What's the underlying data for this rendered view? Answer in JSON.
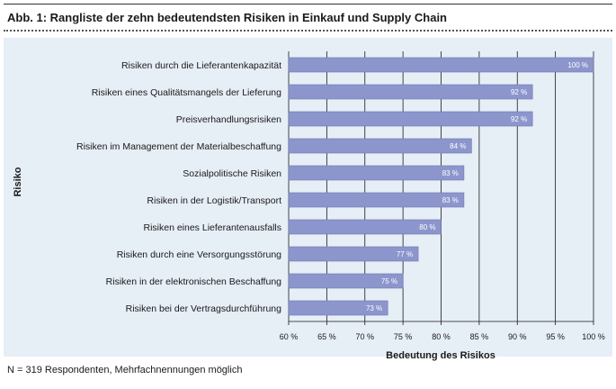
{
  "header": {
    "title": "Abb. 1: Rangliste der zehn bedeutendsten Risiken in Einkauf und Supply Chain"
  },
  "footnote": "N = 319 Respondenten, Mehrfachnennungen möglich",
  "colors": {
    "bar": "#8c96cc",
    "bar_edge": "#6f79b3",
    "panel": "#e6eef6",
    "grid": "#1a1a1a",
    "text": "#1a1a1a"
  },
  "chart_data": {
    "type": "bar",
    "orientation": "horizontal",
    "xlabel": "Bedeutung des Risikos",
    "ylabel": "Risiko",
    "xlim": [
      60,
      100
    ],
    "xticks": [
      60,
      65,
      70,
      75,
      80,
      85,
      90,
      95,
      100
    ],
    "xtick_labels": [
      "60 %",
      "65 %",
      "70 %",
      "75 %",
      "80 %",
      "85 %",
      "90 %",
      "95 %",
      "100 %"
    ],
    "grid": "vertical",
    "categories": [
      "Risiken durch die Lieferantenkapazität",
      "Risiken eines Qualitätsmangels der Lieferung",
      "Preisverhandlungsrisiken",
      "Risiken im Management der Materialbeschaffung",
      "Sozialpolitische Risiken",
      "Risiken in der Logistik/Transport",
      "Risiken eines Lieferantenausfalls",
      "Risiken durch eine Versorgungsstörung",
      "Risiken in der elektronischen Beschaffung",
      "Risiken bei der Vertragsdurchführung"
    ],
    "values": [
      100,
      92,
      92,
      84,
      83,
      83,
      80,
      77,
      75,
      73
    ],
    "value_labels": [
      "100 %",
      "92 %",
      "92 %",
      "84 %",
      "83 %",
      "83 %",
      "80 %",
      "77 %",
      "75 %",
      "73 %"
    ]
  }
}
